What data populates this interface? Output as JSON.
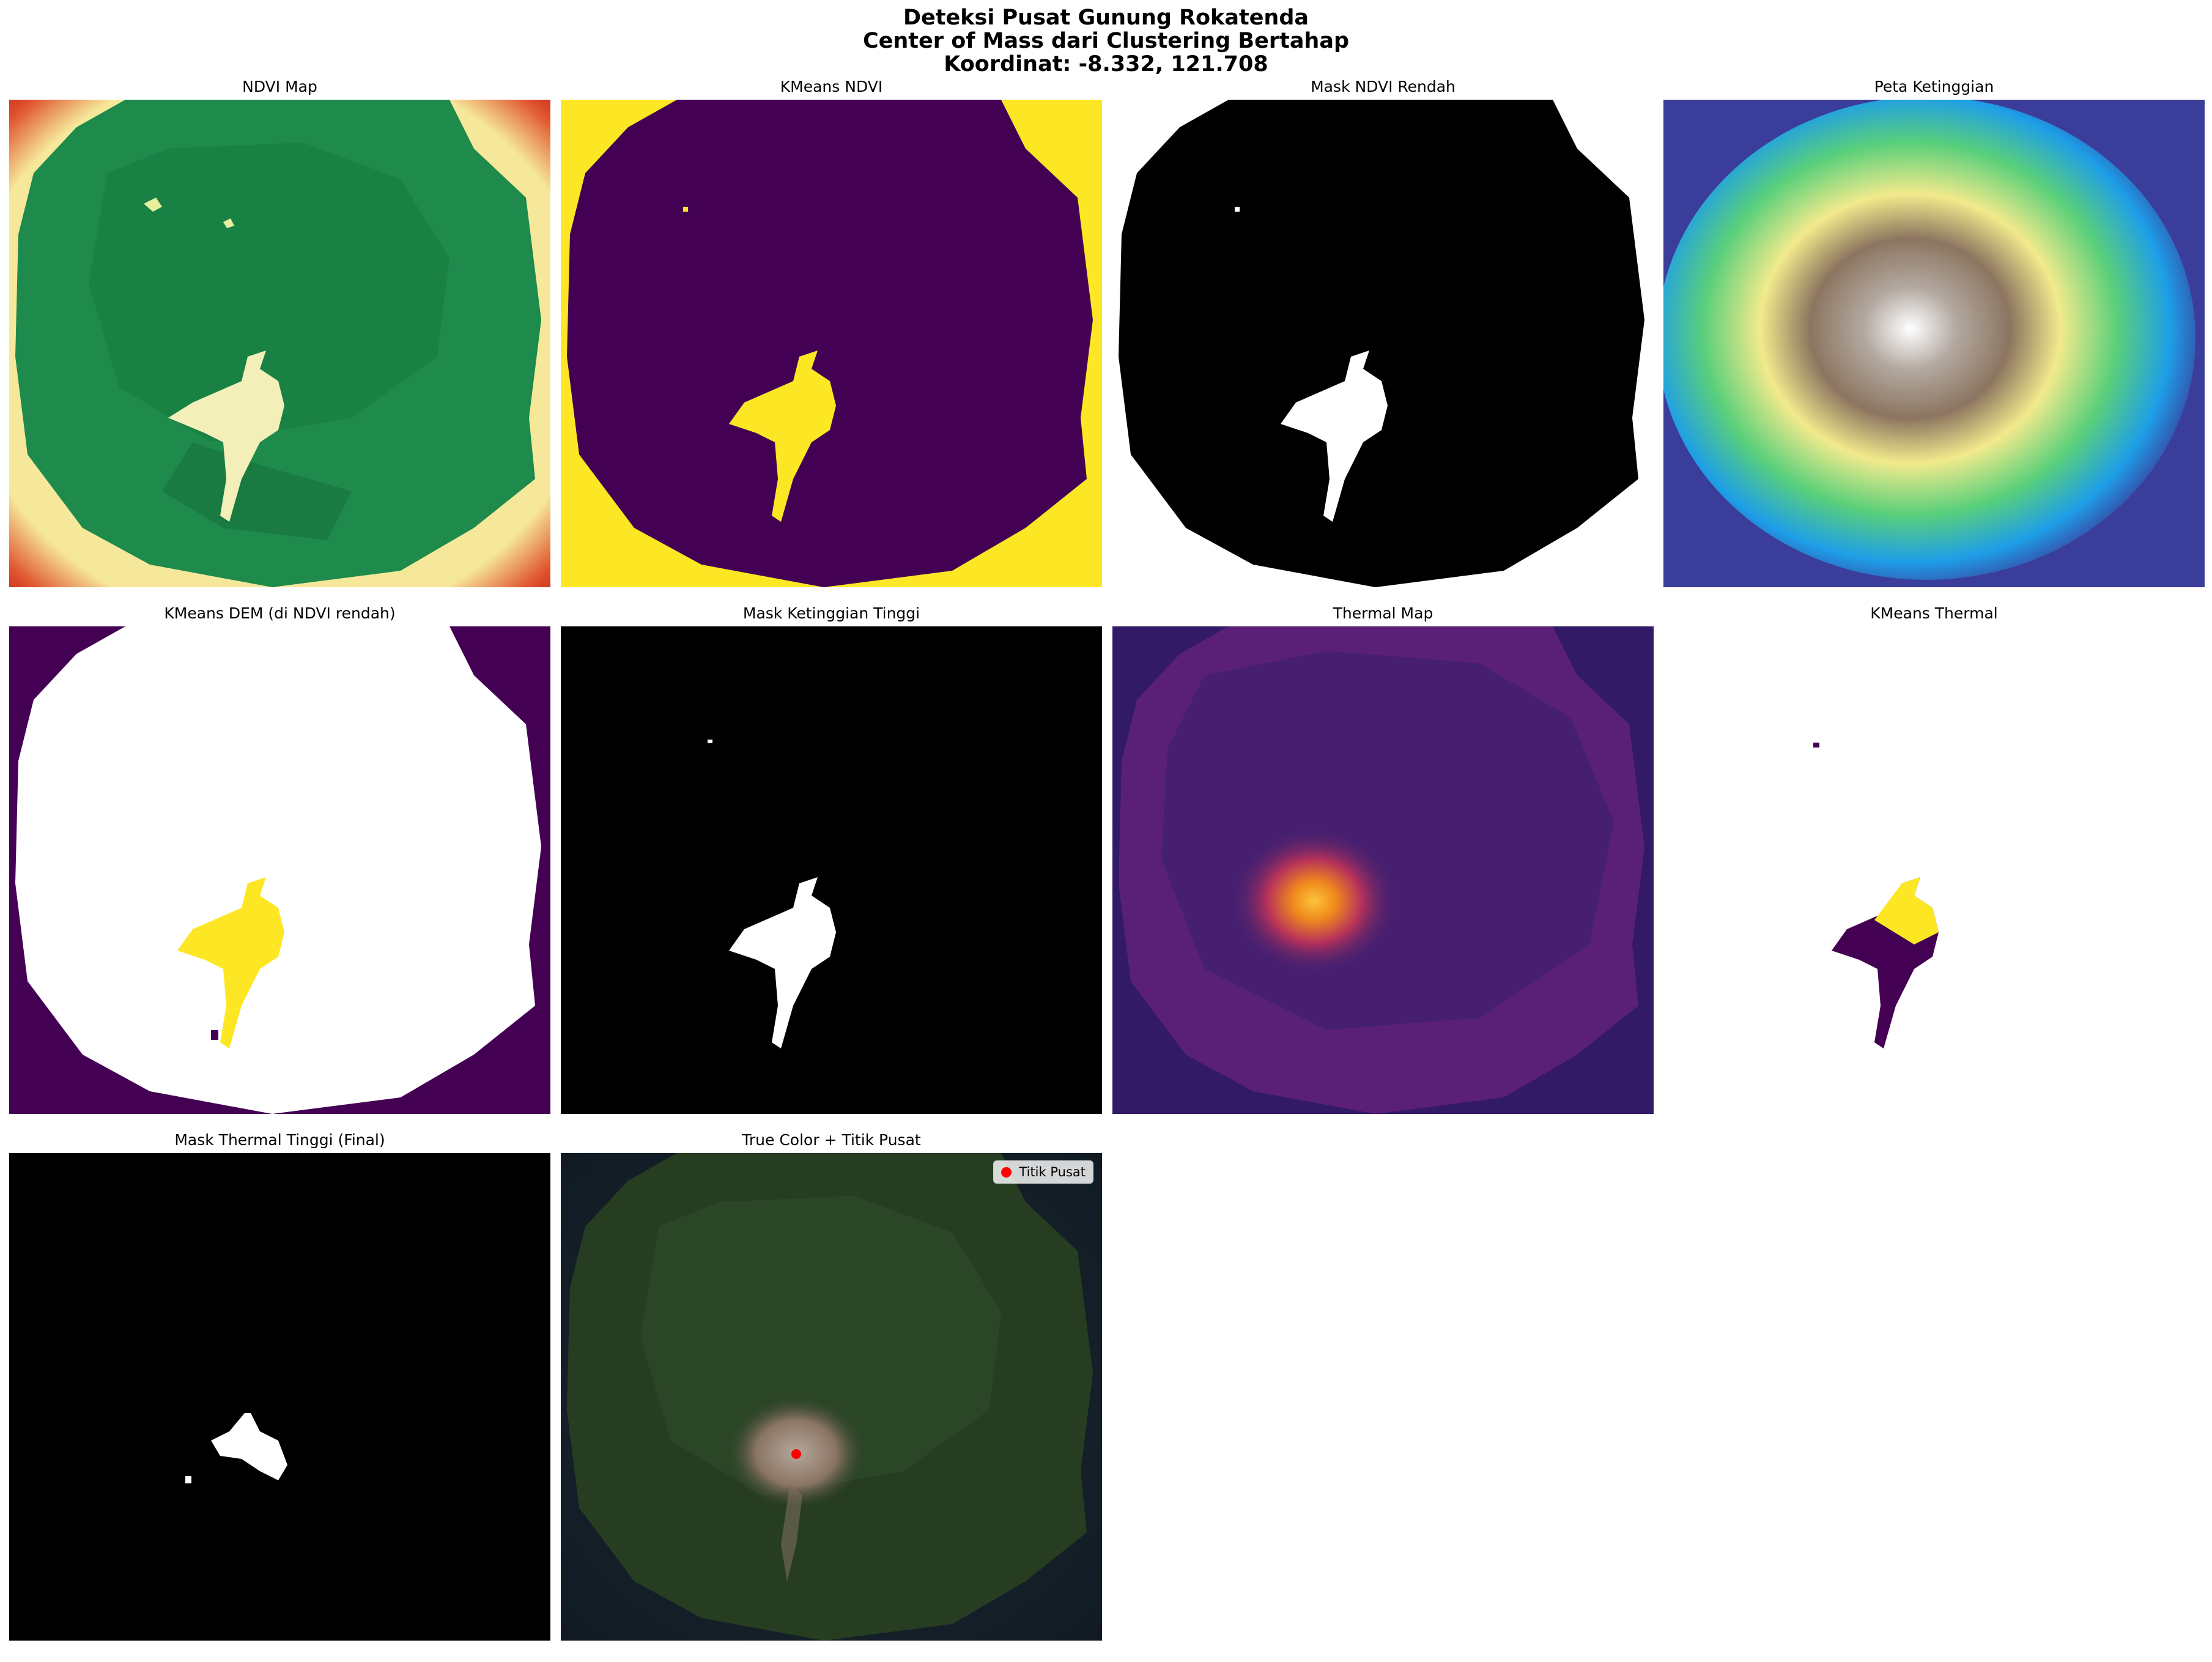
{
  "figure": {
    "title_lines": [
      "Deteksi Pusat Gunung Rokatenda",
      "Center of Mass dari Clustering Bertahap",
      "Koordinat: -8.332, 121.708"
    ]
  },
  "panels": [
    {
      "title": "NDVI Map",
      "colormap": "RdYlGn"
    },
    {
      "title": "KMeans NDVI",
      "colormap": "viridis"
    },
    {
      "title": "Mask NDVI Rendah",
      "colormap": "gray"
    },
    {
      "title": "Peta Ketinggian",
      "colormap": "terrain"
    },
    {
      "title": "KMeans DEM (di NDVI rendah)",
      "colormap": "viridis"
    },
    {
      "title": "Mask Ketinggian Tinggi",
      "colormap": "gray"
    },
    {
      "title": "Thermal Map",
      "colormap": "inferno"
    },
    {
      "title": "KMeans Thermal",
      "colormap": "viridis"
    },
    {
      "title": "Mask Thermal Tinggi (Final)",
      "colormap": "gray"
    },
    {
      "title": "True Color + Titik Pusat",
      "colormap": "rgb"
    }
  ],
  "legend": {
    "label": "Titik Pusat",
    "marker_color": "#ff0000"
  },
  "colors": {
    "ndvi_green": "#1e8a4b",
    "ndvi_red": "#b5121b",
    "viridis_purple": "#440154",
    "viridis_yellow": "#fde725",
    "terrain_blue": "#3a3d9a",
    "inferno_dark": "#3b1f6e",
    "true_color_forest": "#263d22"
  }
}
